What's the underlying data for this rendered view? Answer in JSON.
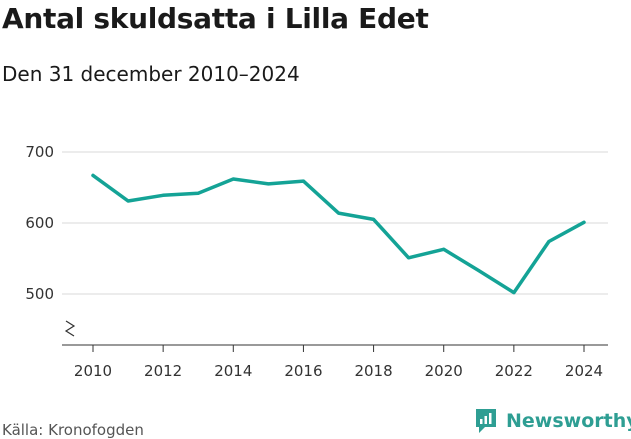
{
  "title": "Antal skuldsatta i Lilla Edet",
  "subtitle": "Den 31 december 2010–2024",
  "source": "Källa: Kronofogden",
  "brand": {
    "name": "Newsworthy",
    "icon": "newsworthy-logo-icon",
    "color": "#2e9e93"
  },
  "colors": {
    "line": "#14a396",
    "grid": "#d9d9d9",
    "axis": "#333333"
  },
  "chart_data": {
    "type": "line",
    "title": "Antal skuldsatta i Lilla Edet",
    "subtitle": "Den 31 december 2010–2024",
    "xlabel": "",
    "ylabel": "",
    "x": [
      2010,
      2011,
      2012,
      2013,
      2014,
      2015,
      2016,
      2017,
      2018,
      2019,
      2020,
      2021,
      2022,
      2023,
      2024
    ],
    "values": [
      667,
      631,
      639,
      642,
      662,
      655,
      659,
      614,
      605,
      551,
      563,
      533,
      502,
      574,
      601
    ],
    "y_ticks": [
      500,
      600,
      700
    ],
    "y_tick_labels": [
      "500",
      "600",
      "700"
    ],
    "x_ticks": [
      2010,
      2012,
      2014,
      2016,
      2018,
      2020,
      2022,
      2024
    ],
    "x_tick_labels": [
      "2010",
      "2012",
      "2014",
      "2016",
      "2018",
      "2020",
      "2022",
      "2024"
    ],
    "xlim": [
      2010,
      2024
    ],
    "ylim": [
      500,
      700
    ],
    "axis_break": true,
    "grid": true
  }
}
